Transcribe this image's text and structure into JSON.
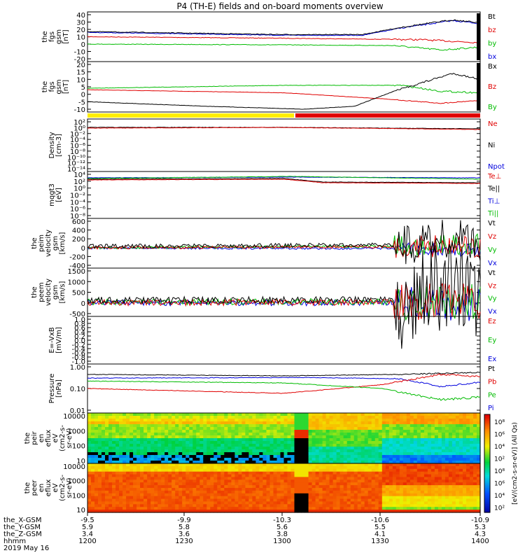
{
  "title": "P4 (TH-E) fields and on-board moments overview",
  "panels": [
    {
      "id": "fgs-gsm",
      "ylabel": [
        "the",
        "fgs",
        "gsm",
        "[nT]"
      ],
      "ticks": [
        "40",
        "30",
        "20",
        "10",
        "0",
        "-10",
        "-20"
      ],
      "legend": [
        {
          "text": "Bt",
          "color": "#000000"
        },
        {
          "text": "bz",
          "color": "#e00000"
        },
        {
          "text": "by",
          "color": "#00bb00"
        },
        {
          "text": "bx",
          "color": "#0000dd"
        }
      ]
    },
    {
      "id": "fgs-gse",
      "ylabel": [
        "the",
        "fgs",
        "gsm",
        "[nT]"
      ],
      "ticks": [
        "20",
        "15",
        "10",
        "5",
        "0",
        "-5",
        "-10"
      ],
      "legend": [
        {
          "text": "Bx",
          "color": "#000000"
        },
        {
          "text": "Bz",
          "color": "#e00000"
        },
        {
          "text": "By",
          "color": "#00bb00"
        }
      ]
    },
    {
      "id": "density",
      "ylabel": [
        "Density",
        "[cm-3]"
      ],
      "ticks": [
        "10²",
        "10⁰",
        "10⁻²",
        "10⁻⁴",
        "10⁻⁶",
        "10⁻⁸",
        "10⁻¹⁰",
        "10⁻¹²",
        "10⁻¹⁴"
      ],
      "legend": [
        {
          "text": "Ne",
          "color": "#e00000"
        },
        {
          "text": "Ni",
          "color": "#000000"
        },
        {
          "text": "Npot",
          "color": "#0000dd"
        }
      ]
    },
    {
      "id": "temperature",
      "ylabel": [
        "mqgt3",
        "[eV]"
      ],
      "ticks": [
        "10⁴",
        "10²",
        "10⁰",
        "10⁻²",
        "10⁻⁴",
        "10⁻⁶",
        "10⁻⁸"
      ],
      "legend": [
        {
          "text": "Te⊥",
          "color": "#e00000"
        },
        {
          "text": "Te||",
          "color": "#000000"
        },
        {
          "text": "Ti⊥",
          "color": "#0000dd"
        },
        {
          "text": "Ti||",
          "color": "#00bb00"
        }
      ]
    },
    {
      "id": "peim-velocity",
      "ylabel": [
        "the",
        "peim",
        "velocity",
        "gsm",
        "[km/s]"
      ],
      "ticks": [
        "600",
        "400",
        "200",
        "0",
        "-200",
        "-400"
      ],
      "legend": [
        {
          "text": "Vt",
          "color": "#000000"
        },
        {
          "text": "Vz",
          "color": "#e00000"
        },
        {
          "text": "Vy",
          "color": "#00bb00"
        },
        {
          "text": "Vx",
          "color": "#0000dd"
        }
      ]
    },
    {
      "id": "peem-velocity",
      "ylabel": [
        "the",
        "peem",
        "velocity",
        "gsm",
        "[km/s]"
      ],
      "ticks": [
        "1500",
        "1000",
        "500",
        "0",
        "-500"
      ],
      "legend": [
        {
          "text": "Vt",
          "color": "#000000"
        },
        {
          "text": "Vz",
          "color": "#e00000"
        },
        {
          "text": "Vy",
          "color": "#00bb00"
        },
        {
          "text": "Vx",
          "color": "#0000dd"
        }
      ]
    },
    {
      "id": "efield",
      "ylabel": [
        "E=-VxB",
        "[mV/m]"
      ],
      "ticks": [
        "1.0",
        "0.8",
        "0.6",
        "0.4",
        "0.2",
        "0.0",
        "-0.2",
        "-0.4",
        "-0.6",
        "-0.8",
        "-1.0"
      ],
      "legend": [
        {
          "text": "Ez",
          "color": "#e00000"
        },
        {
          "text": "Ey",
          "color": "#00bb00"
        },
        {
          "text": "Ex",
          "color": "#0000dd"
        }
      ]
    },
    {
      "id": "pressure",
      "ylabel": [
        "Pressure",
        "[nPa]"
      ],
      "ticks": [
        "1.00",
        "0.10",
        "0.01"
      ],
      "legend": [
        {
          "text": "Pt",
          "color": "#000000"
        },
        {
          "text": "Pb",
          "color": "#e00000"
        },
        {
          "text": "Pe",
          "color": "#00bb00"
        },
        {
          "text": "Pi",
          "color": "#0000dd"
        }
      ]
    },
    {
      "id": "peir-spectrogram",
      "ylabel": [
        "the",
        "peir",
        "en",
        "eflux",
        "eV",
        "(cm2-s-",
        "sr-eV)"
      ],
      "ticks": [
        "10000",
        "1000",
        "100",
        "10"
      ],
      "legend": []
    },
    {
      "id": "peer-spectrogram",
      "ylabel": [
        "the",
        "peer",
        "en",
        "eflux",
        "eV",
        "(cm2-s-",
        "sr-eV)"
      ],
      "ticks": [
        "10000",
        "1000",
        "100",
        "10"
      ],
      "legend": []
    }
  ],
  "colorbar": {
    "label": "[eV/(cm2-s-sr-eV)] (All Qs)",
    "ticks": [
      "10⁸",
      "10⁶",
      "10⁴",
      "10²",
      "10⁸",
      "10⁶",
      "10⁴",
      "10²"
    ]
  },
  "xaxis": {
    "top_ticks": [
      "-9.5",
      "-9.9",
      "-10.3",
      "-10.6",
      "-10.9"
    ],
    "row_labels": [
      "the_X-GSM",
      "the_Y-GSM",
      "the_Z-GSM",
      "hhmm"
    ],
    "rows": [
      [
        "5.9",
        "5.8",
        "5.6",
        "5.5",
        "5.3"
      ],
      [
        "3.4",
        "3.6",
        "3.8",
        "4.1",
        "4.3"
      ],
      [
        "1200",
        "1230",
        "1300",
        "1330",
        "1400"
      ]
    ],
    "date": "2019 May 16"
  },
  "chart_data": {
    "type": "line",
    "title": "P4 (TH-E) fields and on-board moments overview",
    "x": [
      "1200",
      "1230",
      "1300",
      "1330",
      "1400"
    ],
    "xlabel": "hhmm",
    "series": [
      {
        "name": "Bt",
        "values": [
          17,
          14,
          12,
          15,
          32
        ]
      },
      {
        "name": "bz",
        "values": [
          10,
          9,
          8,
          7,
          3
        ]
      },
      {
        "name": "by",
        "values": [
          0,
          -1,
          -1,
          -3,
          -8
        ]
      },
      {
        "name": "bx",
        "values": [
          16,
          13,
          12,
          14,
          30
        ]
      },
      {
        "name": "Bx",
        "values": [
          -5,
          -8,
          -10,
          -2,
          14
        ]
      },
      {
        "name": "Bz",
        "values": [
          3,
          2,
          0,
          -3,
          -5
        ]
      },
      {
        "name": "By",
        "values": [
          4,
          5,
          6,
          6,
          0
        ]
      },
      {
        "name": "Pt",
        "values": [
          0.45,
          0.4,
          0.38,
          0.42,
          0.55
        ]
      },
      {
        "name": "Pb",
        "values": [
          0.1,
          0.07,
          0.06,
          0.15,
          0.45
        ]
      },
      {
        "name": "Pe",
        "values": [
          0.22,
          0.2,
          0.18,
          0.08,
          0.03
        ]
      },
      {
        "name": "Pi",
        "values": [
          0.3,
          0.3,
          0.32,
          0.32,
          0.2
        ]
      }
    ],
    "ylim_by_panel": {
      "fgs-gsm": [
        -20,
        40
      ],
      "fgs-gse": [
        -13,
        21
      ],
      "pressure": [
        0.01,
        1.0
      ]
    }
  }
}
